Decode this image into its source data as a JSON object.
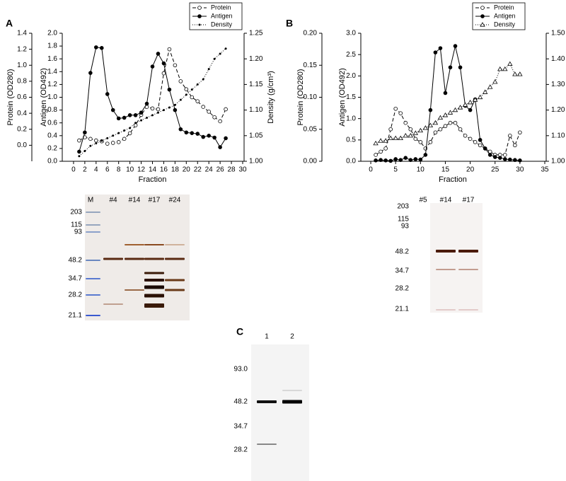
{
  "panels": [
    "A",
    "B",
    "C"
  ],
  "chart_data": [
    {
      "type": "line",
      "x": [
        1,
        2,
        3,
        4,
        5,
        6,
        7,
        8,
        9,
        10,
        11,
        12,
        13,
        14,
        15,
        16,
        17,
        18,
        19,
        20,
        21,
        22,
        23,
        24,
        25,
        26,
        27
      ],
      "series": [
        {
          "name": "Protein",
          "color": "#000000",
          "axis": "y3",
          "marker": "open-circle",
          "dash": "dashed",
          "values": [
            0.06,
            0.1,
            0.08,
            0.06,
            0.05,
            0.02,
            0.03,
            0.04,
            0.08,
            0.15,
            0.25,
            0.38,
            0.48,
            0.46,
            0.45,
            0.9,
            1.2,
            1.0,
            0.8,
            0.7,
            0.6,
            0.55,
            0.48,
            0.42,
            0.35,
            0.3,
            0.45
          ]
        },
        {
          "name": "Antigen",
          "color": "#000000",
          "axis": "y",
          "marker": "filled-circle",
          "dash": "solid",
          "values": [
            0.15,
            0.45,
            1.38,
            1.78,
            1.77,
            1.05,
            0.8,
            0.67,
            0.68,
            0.72,
            0.72,
            0.76,
            0.9,
            1.48,
            1.68,
            1.53,
            1.12,
            0.8,
            0.5,
            0.45,
            0.44,
            0.43,
            0.38,
            0.4,
            0.37,
            0.22,
            0.36
          ]
        },
        {
          "name": "Density",
          "color": "#000000",
          "axis": "y2",
          "marker": "dot",
          "dash": "dotted",
          "values": [
            1.01,
            1.02,
            1.03,
            1.035,
            1.04,
            1.045,
            1.05,
            1.055,
            1.06,
            1.065,
            1.075,
            1.08,
            1.085,
            1.09,
            1.095,
            1.1,
            1.105,
            1.11,
            1.12,
            1.13,
            1.14,
            1.15,
            1.16,
            1.18,
            1.2,
            1.21,
            1.22
          ]
        }
      ],
      "xlabel": "Fraction",
      "ylabel": "Antigen (OD492)",
      "y2label": "Density (g/cm³)",
      "y3label": "Protein (OD280)",
      "xlim": [
        -2,
        30
      ],
      "xticks": [
        0,
        2,
        4,
        6,
        8,
        10,
        12,
        14,
        16,
        18,
        20,
        22,
        24,
        26,
        28,
        30
      ],
      "ylim": [
        0,
        2
      ],
      "yticks": [
        {
          "value": 0,
          "label": "0.0"
        },
        0.2,
        0.4,
        0.6,
        0.8,
        {
          "value": 1,
          "label": "1.0"
        },
        1.2,
        1.4,
        1.6,
        1.8,
        {
          "value": 2,
          "label": "2.0"
        }
      ],
      "y2lim": [
        1,
        1.25
      ],
      "y2ticks": [
        {
          "value": 1,
          "label": "1.00"
        },
        1.05,
        {
          "value": 1.1,
          "label": "1.10"
        },
        1.15,
        {
          "value": 1.2,
          "label": "1.20"
        },
        1.25
      ],
      "y3lim": [
        -0.2,
        1.4
      ],
      "y3ticks": [
        {
          "value": 0,
          "label": "0.0"
        },
        0.2,
        0.4,
        0.6,
        0.8,
        {
          "value": 1,
          "label": "1.0"
        },
        1.2,
        1.4
      ],
      "legend": "top-right"
    },
    {
      "type": "line",
      "x": [
        1,
        2,
        3,
        4,
        5,
        6,
        7,
        8,
        9,
        10,
        11,
        12,
        13,
        14,
        15,
        16,
        17,
        18,
        19,
        20,
        21,
        22,
        23,
        24,
        25,
        26,
        27,
        28,
        29,
        30
      ],
      "series": [
        {
          "name": "Protein",
          "color": "#000000",
          "axis": "y3",
          "marker": "open-circle",
          "dash": "dashed",
          "values": [
            0.01,
            0.015,
            0.02,
            0.05,
            0.082,
            0.075,
            0.06,
            0.05,
            0.035,
            0.03,
            0.02,
            0.03,
            0.045,
            0.05,
            0.055,
            0.06,
            0.06,
            0.05,
            0.04,
            0.035,
            0.03,
            0.025,
            0.02,
            0.015,
            0.01,
            0.01,
            0.01,
            0.04,
            0.025,
            0.045
          ]
        },
        {
          "name": "Antigen",
          "color": "#000000",
          "axis": "y",
          "marker": "filled-circle",
          "dash": "solid",
          "values": [
            0.02,
            0.03,
            0.02,
            0.01,
            0.05,
            0.03,
            0.08,
            0.03,
            0.05,
            0.04,
            0.15,
            1.2,
            2.55,
            2.65,
            1.6,
            2.2,
            2.7,
            2.2,
            1.3,
            1.2,
            1.45,
            0.5,
            0.3,
            0.15,
            0.1,
            0.08,
            0.05,
            0.04,
            0.03,
            0.02
          ]
        },
        {
          "name": "Density",
          "color": "#000000",
          "axis": "y2",
          "marker": "open-triangle",
          "dash": "dotted",
          "values": [
            1.07,
            1.08,
            1.08,
            1.09,
            1.09,
            1.09,
            1.1,
            1.1,
            1.11,
            1.12,
            1.13,
            1.14,
            1.15,
            1.17,
            1.18,
            1.19,
            1.2,
            1.21,
            1.22,
            1.23,
            1.24,
            1.25,
            1.27,
            1.29,
            1.31,
            1.36,
            1.36,
            1.38,
            1.34,
            1.34
          ]
        }
      ],
      "xlabel": "Fraction",
      "ylabel": "Antigen (OD492)",
      "y2label": "Density (g/cm³)",
      "y3label": "Protein (OD280)",
      "xlim": [
        -2,
        35
      ],
      "xticks": [
        0,
        5,
        10,
        15,
        20,
        25,
        30,
        35
      ],
      "ylim": [
        0,
        3
      ],
      "yticks": [
        {
          "value": 0,
          "label": "0.0"
        },
        0.5,
        {
          "value": 1,
          "label": "1.0"
        },
        1.5,
        {
          "value": 2,
          "label": "2.0"
        },
        2.5,
        {
          "value": 3,
          "label": "3.0"
        }
      ],
      "y2lim": [
        1,
        1.5
      ],
      "y2ticks": [
        {
          "value": 1,
          "label": "1.00"
        },
        {
          "value": 1.1,
          "label": "1.10"
        },
        {
          "value": 1.2,
          "label": "1.20"
        },
        {
          "value": 1.3,
          "label": "1.30"
        },
        {
          "value": 1.4,
          "label": "1.40"
        },
        {
          "value": 1.5,
          "label": "1.50"
        }
      ],
      "y3lim": [
        0,
        0.2
      ],
      "y3ticks": [
        {
          "value": 0,
          "label": "0.00"
        },
        0.05,
        {
          "value": 0.1,
          "label": "0.10"
        },
        0.15,
        {
          "value": 0.2,
          "label": "0.20"
        }
      ],
      "legend": "top-right"
    }
  ],
  "gels": [
    {
      "lanes": [
        "M",
        "#4",
        "#14",
        "#17",
        "#24"
      ],
      "mw": [
        "203",
        "115",
        "93",
        "48.2",
        "34.7",
        "28.2",
        "21.1"
      ]
    },
    {
      "lanes": [
        "#5",
        "#14",
        "#17"
      ],
      "mw": [
        "203",
        "115",
        "93",
        "48.2",
        "34.7",
        "28.2",
        "21.1"
      ]
    },
    {
      "lanes": [
        "1",
        "2"
      ],
      "mw": [
        "93.0",
        "48.2",
        "34.7",
        "28.2"
      ]
    }
  ]
}
